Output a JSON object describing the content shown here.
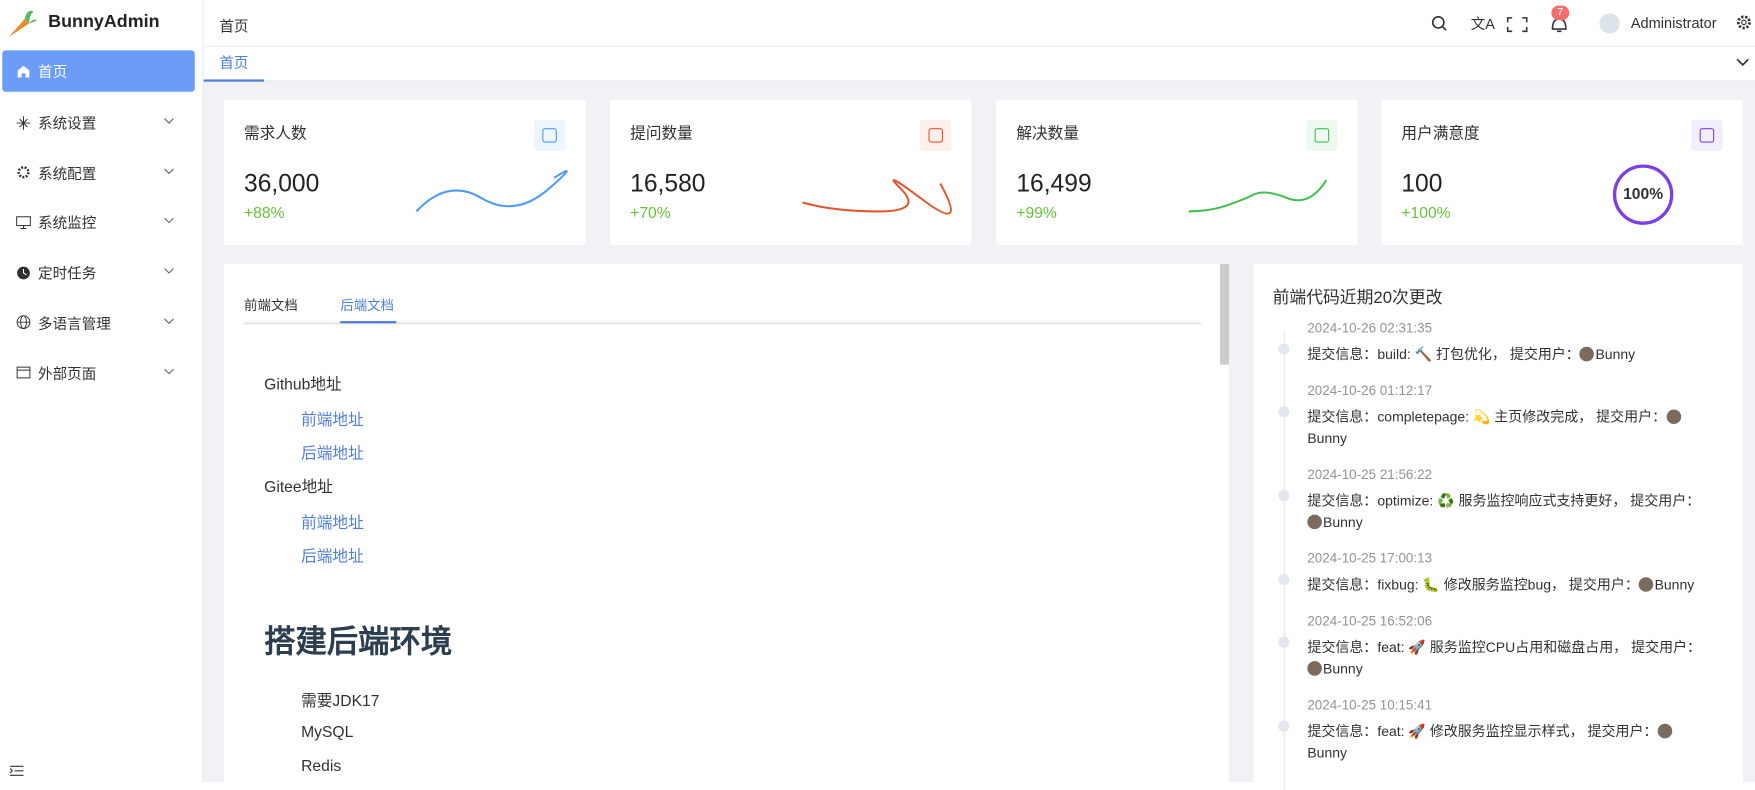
{
  "brand": "BunnyAdmin",
  "sidebar": {
    "items": [
      "首页",
      "系统设置",
      "系统配置",
      "系统监控",
      "定时任务",
      "多语言管理",
      "外部页面"
    ]
  },
  "header": {
    "breadcrumb": "首页",
    "badge": "7",
    "user": "Administrator"
  },
  "tabs": [
    "首页"
  ],
  "cards": [
    {
      "title": "需求人数",
      "value": "36,000",
      "change": "+88%"
    },
    {
      "title": "提问数量",
      "value": "16,580",
      "change": "+70%"
    },
    {
      "title": "解决数量",
      "value": "16,499",
      "change": "+99%"
    },
    {
      "title": "用户满意度",
      "value": "100",
      "change": "+100%",
      "gauge": "100%"
    }
  ],
  "docs": {
    "tabs": [
      "前端文档",
      "后端文档"
    ],
    "sections": [
      {
        "title": "Github地址",
        "links": [
          "前端地址",
          "后端地址"
        ]
      },
      {
        "title": "Gitee地址",
        "links": [
          "前端地址",
          "后端地址"
        ]
      }
    ],
    "heading": "搭建后端环境",
    "items": [
      "需要JDK17",
      "MySQL",
      "Redis"
    ]
  },
  "commits": {
    "title": "前端代码近期20次更改",
    "items": [
      {
        "time": "2024-10-26 02:31:35",
        "label": "提交信息：",
        "message": "build: 🔨 打包优化，",
        "user_label": "提交用户：",
        "user": "Bunny"
      },
      {
        "time": "2024-10-26 01:12:17",
        "label": "提交信息：",
        "message": "completepage: 💫 主页修改完成，",
        "user_label": "提交用户：",
        "user": "Bunny"
      },
      {
        "time": "2024-10-25 21:56:22",
        "label": "提交信息：",
        "message": "optimize: ♻️ 服务监控响应式支持更好，",
        "user_label": "提交用户：",
        "user": "Bunny"
      },
      {
        "time": "2024-10-25 17:00:13",
        "label": "提交信息：",
        "message": "fixbug: 🐛 修改服务监控bug，",
        "user_label": "提交用户：",
        "user": "Bunny"
      },
      {
        "time": "2024-10-25 16:52:06",
        "label": "提交信息：",
        "message": "feat: 🚀 服务监控CPU占用和磁盘占用，",
        "user_label": "提交用户：",
        "user": "Bunny"
      },
      {
        "time": "2024-10-25 10:15:41",
        "label": "提交信息：",
        "message": "feat: 🚀 修改服务监控显示样式，",
        "user_label": "提交用户：",
        "user": "Bunny"
      }
    ]
  }
}
